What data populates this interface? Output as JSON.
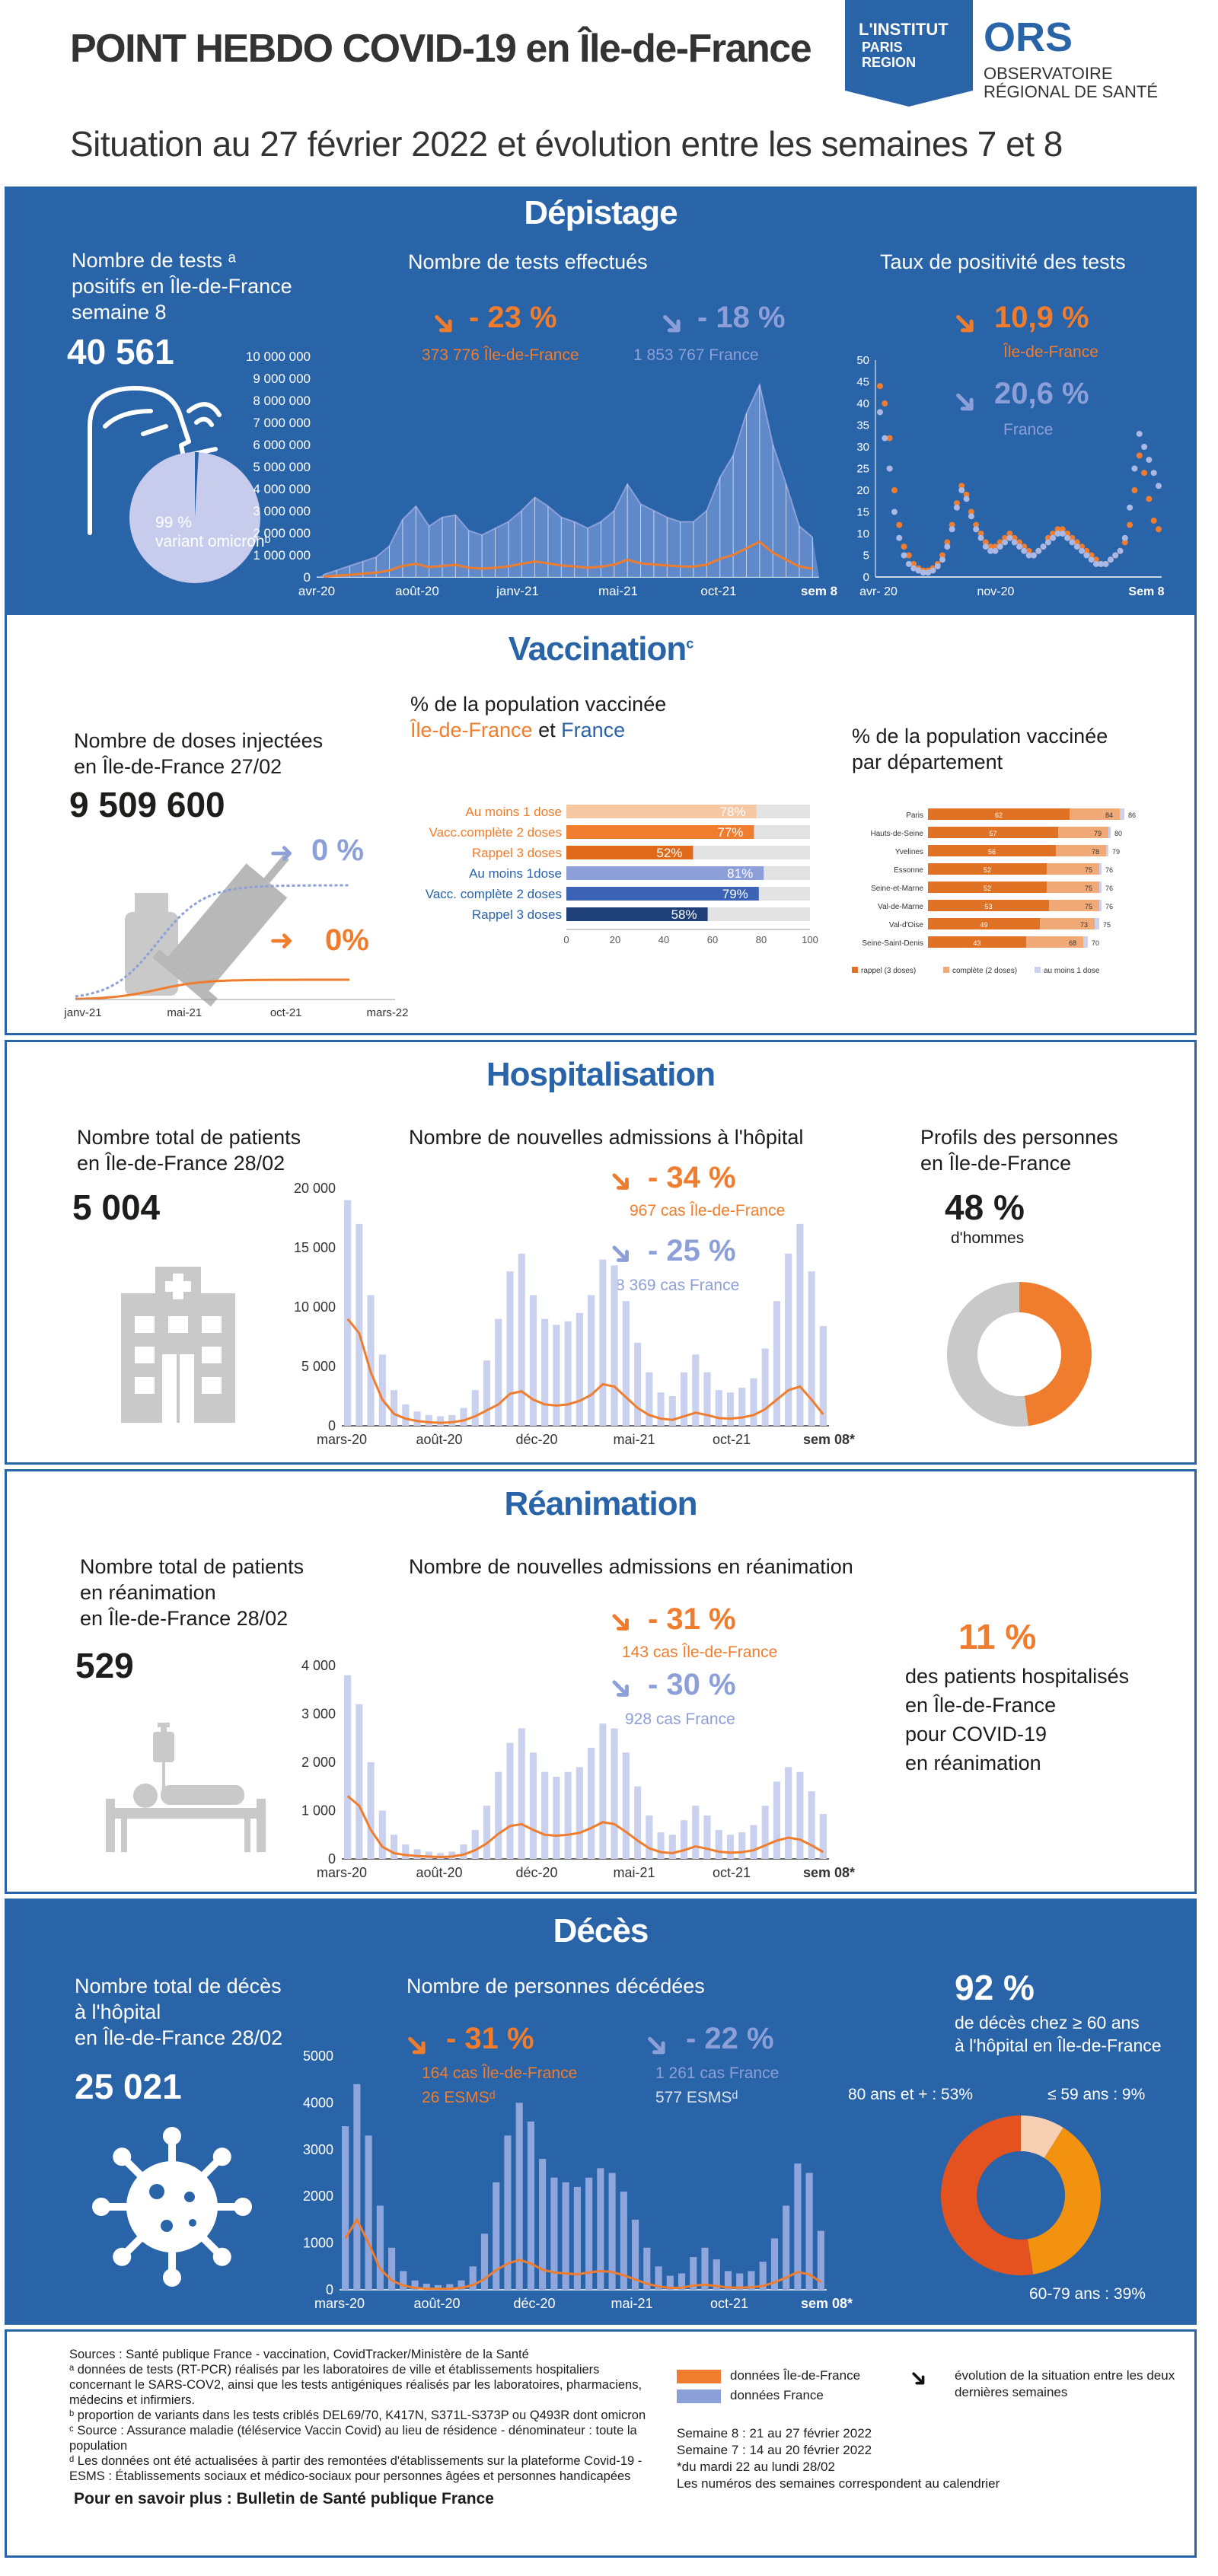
{
  "header": {
    "title": "POINT HEBDO COVID-19 en Île-de-France",
    "subtitle": "Situation au 27 février 2022 et évolution entre les semaines 7 et 8",
    "logo_institut": [
      "L'INSTITUT",
      "PARIS",
      "REGION"
    ],
    "logo_ors": "ORS",
    "logo_ors_sub": [
      "OBSERVATOIRE",
      "RÉGIONAL DE SANTÉ"
    ]
  },
  "depistage": {
    "title": "Dépistage",
    "kpi_label": [
      "Nombre de tests ᵃ",
      "positifs en Île-de-France",
      "semaine 8"
    ],
    "kpi_value": "40 561",
    "pie_label": [
      "99 %",
      "variant omicronᵇ"
    ],
    "omicron_share": 0.99,
    "chart1_title": "Nombre de tests effectués",
    "idf_change": "- 23 %",
    "idf_count": "373 776 Île-de-France",
    "fr_change": "- 18 %",
    "fr_count": "1 853 767  France",
    "chart2_title": "Taux de positivité des tests",
    "pos_idf": "10,9 %",
    "pos_idf_label": "Île-de-France",
    "pos_fr": "20,6 %",
    "pos_fr_label": "France"
  },
  "vaccination": {
    "title": "Vaccination",
    "title_sup": "c",
    "kpi_label": [
      "Nombre de doses injectées",
      "en Île-de-France 27/02"
    ],
    "kpi_value": "9 509 600",
    "fr_change": "0 %",
    "idf_change": "0%",
    "bar_title": "% de la population vaccinée",
    "bar_sub_idf": "Île-de-France",
    "bar_sub_et": " et ",
    "bar_sub_fr": "France",
    "dept_title": [
      "% de la population vaccinée",
      "par département"
    ]
  },
  "hospitalisation": {
    "title": "Hospitalisation",
    "kpi_label": [
      "Nombre total de patients",
      "en Île-de-France 28/02"
    ],
    "kpi_value": "5 004",
    "chart_title": "Nombre de nouvelles admissions à l'hôpital",
    "idf_change": "- 34 %",
    "idf_count": "967 cas Île-de-France",
    "fr_change": "- 25 %",
    "fr_count": "8 369 cas France",
    "profile_title": [
      "Profils des personnes",
      "en Île-de-France"
    ],
    "men_value": "48 %",
    "men_label": "d'hommes",
    "men_share": 0.48
  },
  "reanimation": {
    "title": "Réanimation",
    "kpi_label": [
      "Nombre total de patients",
      "en réanimation",
      "en Île-de-France 28/02"
    ],
    "kpi_value": "529",
    "chart_title": "Nombre de nouvelles admissions en réanimation",
    "idf_change": "- 31 %",
    "idf_count": "143 cas Île-de-France",
    "fr_change": "- 30 %",
    "fr_count": "928 cas France",
    "share_value": "11 %",
    "share_label": [
      "des patients hospitalisés",
      "en Île-de-France",
      "pour COVID-19",
      "en réanimation"
    ]
  },
  "deces": {
    "title": "Décès",
    "kpi_label": [
      "Nombre total de décès",
      "à l'hôpital",
      "en Île-de-France 28/02"
    ],
    "kpi_value": "25 021",
    "chart_title": "Nombre de personnes décédées",
    "idf_change": "- 31 %",
    "idf_count": "164 cas Île-de-France",
    "idf_esms": "26 ESMSᵈ",
    "fr_change": "- 22 %",
    "fr_count": "1 261 cas France",
    "fr_esms": "577 ESMSᵈ",
    "share_value": "92 %",
    "share_label": [
      "de décès chez ≥ 60 ans",
      "à l'hôpital en Île-de-France"
    ],
    "age_80": "80 ans et + : 53%",
    "age_59": "≤ 59 ans : 9%",
    "age_60": "60-79 ans : 39%"
  },
  "footer": {
    "sources": [
      "Sources : Santé publique France - vaccination, CovidTracker/Ministère de la Santé",
      "ᵃ données de tests (RT-PCR) réalisés par les laboratoires de ville et établissements hospitaliers",
      "concernant le SARS-COV2, ainsi que les tests antigéniques réalisés par les laboratoires, pharmaciens,",
      "médecins et infirmiers.",
      "ᵇ proportion de variants dans les tests criblés DEL69/70, K417N, S371L-S373P ou Q493R dont omicron",
      "ᶜ Source : Assurance maladie (téléservice Vaccin Covid) au lieu de résidence - dénominateur : toute la population",
      "ᵈ Les données ont été actualisées à partir des remontées d'établissements sur la plateforme Covid-19 -",
      "ESMS : Établissements sociaux et  médico-sociaux pour personnes âgées et personnes handicapées"
    ],
    "more": "Pour en savoir plus : Bulletin de Santé publique France",
    "legend_idf": "données Île-de-France",
    "legend_fr": "données France",
    "legend_arrow": [
      "évolution de la situation entre les deux",
      "dernières semaines"
    ],
    "weeks": [
      "Semaine 8 :   21 au 27 février 2022",
      "Semaine 7 :   14 au 20 février 2022",
      "*du mardi 22 au lundi 28/02",
      "Les numéros des semaines correspondent au calendrier"
    ]
  },
  "colors": {
    "blue": "#2963a8",
    "orange": "#ef7d2d",
    "lavender": "#8c9fd8",
    "grey": "#c9c9c9"
  },
  "chart_data": [
    {
      "type": "area",
      "title": "Nombre de tests effectués",
      "x_ticks": [
        "avr-20",
        "août-20",
        "janv-21",
        "mai-21",
        "oct-21",
        "sem 8"
      ],
      "y_ticks": [
        "0",
        "1 000 000",
        "2 000 000",
        "3 000 000",
        "4 000 000",
        "5 000 000",
        "6 000 000",
        "7 000 000",
        "8 000 000",
        "9 000 000",
        "10 000 000"
      ],
      "ylim": [
        0,
        10000000
      ],
      "series": [
        {
          "name": "données France",
          "values": [
            100000,
            300000,
            500000,
            700000,
            900000,
            1400000,
            2600000,
            3200000,
            2300000,
            2700000,
            2800000,
            2100000,
            1900000,
            2200000,
            2500000,
            3000000,
            3600000,
            3200000,
            2700000,
            2500000,
            2200000,
            2500000,
            3000000,
            4200000,
            3300000,
            3000000,
            2700000,
            2500000,
            2500000,
            3000000,
            4500000,
            5500000,
            7400000,
            8700000,
            6000000,
            4200000,
            2300000,
            1800000
          ]
        },
        {
          "name": "données Île-de-France",
          "values": [
            20000,
            60000,
            100000,
            150000,
            200000,
            300000,
            500000,
            600000,
            450000,
            500000,
            550000,
            420000,
            380000,
            420000,
            480000,
            600000,
            700000,
            620000,
            520000,
            480000,
            420000,
            470000,
            560000,
            780000,
            620000,
            570000,
            520000,
            480000,
            470000,
            560000,
            820000,
            1000000,
            1300000,
            1600000,
            1100000,
            780000,
            480000,
            374000
          ]
        }
      ]
    },
    {
      "type": "scatter",
      "title": "Taux de positivité des tests",
      "x_ticks": [
        "avr- 20",
        "nov-20",
        "Sem 8"
      ],
      "y_ticks": [
        "0",
        "5",
        "10",
        "15",
        "20",
        "25",
        "30",
        "35",
        "40",
        "45",
        "50"
      ],
      "ylim": [
        0,
        50
      ],
      "series": [
        {
          "name": "Île-de-France",
          "values": [
            44,
            40,
            32,
            20,
            12,
            7,
            5,
            3,
            2,
            1.5,
            1.5,
            2,
            3,
            5,
            8,
            12,
            17,
            21,
            19,
            15,
            12,
            10,
            8,
            7,
            7,
            8,
            9,
            10,
            9,
            8,
            7,
            6,
            5,
            6,
            7,
            9,
            10,
            11,
            11,
            10,
            9,
            8,
            7,
            6,
            5,
            4,
            3,
            3,
            4,
            5,
            6,
            8,
            12,
            20,
            28,
            24,
            18,
            13,
            11
          ]
        },
        {
          "name": "France",
          "values": [
            38,
            32,
            25,
            15,
            9,
            5,
            3,
            2,
            1.5,
            1,
            1,
            1.5,
            2.5,
            4,
            7,
            11,
            16,
            20,
            18,
            14,
            11,
            9,
            7,
            6,
            6,
            7,
            8,
            9,
            8,
            7,
            6,
            5,
            5,
            6,
            7,
            8,
            9,
            10,
            10,
            9,
            8,
            7,
            6,
            5,
            4,
            3,
            3,
            3,
            4,
            5,
            6,
            9,
            16,
            25,
            33,
            30,
            27,
            24,
            21
          ]
        }
      ]
    },
    {
      "type": "bar",
      "title": "% de la population vaccinée",
      "categories": [
        "Au moins 1 dose",
        "Vacc.complète 2 doses",
        "Rappel 3 doses",
        "Au moins 1dose",
        "Vacc. complète 2 doses",
        "Rappel 3 doses"
      ],
      "values": [
        78,
        77,
        52,
        81,
        79,
        58
      ],
      "value_labels": [
        "78%",
        "77%",
        "52%",
        "81%",
        "79%",
        "58%"
      ],
      "xlim": [
        0,
        100
      ],
      "x_ticks": [
        "0",
        "20",
        "40",
        "60",
        "80",
        "100"
      ]
    },
    {
      "type": "bar",
      "title": "% de la population vaccinée par département",
      "categories": [
        "Paris",
        "Hauts-de-Seine",
        "Yvelines",
        "Essonne",
        "Seine-et-Marne",
        "Val-de-Marne",
        "Val-d'Oise",
        "Seine-Saint-Denis"
      ],
      "series": [
        {
          "name": "rappel (3 doses)",
          "values": [
            62,
            57,
            56,
            52,
            52,
            53,
            49,
            43
          ]
        },
        {
          "name": "complète (2 doses)",
          "values": [
            84,
            79,
            78,
            75,
            75,
            75,
            73,
            68
          ]
        },
        {
          "name": "au moins 1 dose",
          "values": [
            86,
            80,
            79,
            76,
            76,
            76,
            75,
            70
          ]
        }
      ],
      "xlim": [
        0,
        100
      ]
    },
    {
      "type": "bar",
      "title": "Nombre de nouvelles admissions à l'hôpital",
      "x_ticks": [
        "mars-20",
        "août-20",
        "déc-20",
        "mai-21",
        "oct-21",
        "sem 08*"
      ],
      "y_ticks": [
        "0",
        "5 000",
        "10 000",
        "15 000",
        "20 000"
      ],
      "ylim": [
        0,
        20000
      ],
      "series": [
        {
          "name": "données France",
          "values": [
            19000,
            17000,
            11000,
            6000,
            3000,
            1800,
            1200,
            900,
            800,
            900,
            1500,
            3000,
            5500,
            9000,
            13000,
            14500,
            11000,
            9000,
            8500,
            8800,
            9500,
            11000,
            14000,
            13500,
            10500,
            7000,
            4500,
            2800,
            2500,
            4500,
            6000,
            4500,
            3000,
            2800,
            3200,
            4000,
            6500,
            10500,
            14500,
            17000,
            13000,
            8400
          ]
        },
        {
          "name": "données Île-de-France",
          "values": [
            9000,
            7800,
            4500,
            2200,
            1000,
            600,
            400,
            300,
            250,
            300,
            450,
            800,
            1300,
            1800,
            2700,
            2900,
            2200,
            1800,
            1700,
            1800,
            2100,
            2600,
            3500,
            3300,
            2400,
            1500,
            900,
            600,
            500,
            800,
            1100,
            900,
            650,
            600,
            700,
            900,
            1400,
            2200,
            3000,
            3300,
            2200,
            967
          ]
        }
      ]
    },
    {
      "type": "bar",
      "title": "Nombre de nouvelles admissions en réanimation",
      "x_ticks": [
        "mars-20",
        "août-20",
        "déc-20",
        "mai-21",
        "oct-21",
        "sem 08*"
      ],
      "y_ticks": [
        "0",
        "1 000",
        "2 000",
        "3 000",
        "4 000"
      ],
      "ylim": [
        0,
        4000
      ],
      "series": [
        {
          "name": "données France",
          "values": [
            3800,
            3200,
            2000,
            1000,
            500,
            300,
            200,
            150,
            120,
            150,
            300,
            600,
            1100,
            1800,
            2400,
            2700,
            2200,
            1800,
            1700,
            1800,
            1900,
            2300,
            2800,
            2700,
            2200,
            1500,
            900,
            550,
            500,
            800,
            1100,
            900,
            600,
            500,
            550,
            700,
            1100,
            1600,
            1900,
            1800,
            1400,
            928
          ]
        },
        {
          "name": "données Île-de-France",
          "values": [
            1300,
            1100,
            600,
            250,
            120,
            80,
            60,
            50,
            40,
            50,
            90,
            180,
            320,
            520,
            680,
            720,
            600,
            500,
            480,
            500,
            540,
            640,
            760,
            720,
            560,
            380,
            220,
            140,
            120,
            180,
            260,
            210,
            150,
            130,
            140,
            180,
            280,
            380,
            440,
            400,
            280,
            143
          ]
        }
      ]
    },
    {
      "type": "bar",
      "title": "Nombre de personnes décédées",
      "x_ticks": [
        "mars-20",
        "août-20",
        "déc-20",
        "mai-21",
        "oct-21",
        "sem 08*"
      ],
      "y_ticks": [
        "0",
        "1000",
        "2000",
        "3000",
        "4000",
        "5000"
      ],
      "ylim": [
        0,
        5000
      ],
      "series": [
        {
          "name": "données France",
          "values": [
            3500,
            4400,
            3300,
            1800,
            900,
            400,
            200,
            130,
            100,
            120,
            200,
            500,
            1200,
            2300,
            3300,
            4000,
            3600,
            2800,
            2400,
            2300,
            2200,
            2400,
            2600,
            2500,
            2100,
            1500,
            900,
            500,
            300,
            350,
            700,
            900,
            650,
            400,
            350,
            400,
            600,
            1100,
            1800,
            2700,
            2500,
            1261
          ]
        },
        {
          "name": "données Île-de-France",
          "values": [
            1100,
            1500,
            1000,
            450,
            200,
            90,
            40,
            25,
            20,
            22,
            40,
            100,
            230,
            420,
            560,
            640,
            560,
            430,
            370,
            350,
            330,
            370,
            400,
            380,
            310,
            220,
            130,
            70,
            40,
            45,
            90,
            110,
            80,
            50,
            45,
            55,
            80,
            160,
            260,
            380,
            330,
            164
          ]
        }
      ]
    },
    {
      "type": "pie",
      "title": "Profils des personnes en Île-de-France",
      "categories": [
        "hommes",
        "autres"
      ],
      "values": [
        48,
        52
      ]
    },
    {
      "type": "pie",
      "title": "de décès chez ≥ 60 ans à l'hôpital en Île-de-France",
      "categories": [
        "80 ans et +",
        "60-79 ans",
        "≤ 59 ans"
      ],
      "values": [
        53,
        39,
        9
      ]
    }
  ]
}
